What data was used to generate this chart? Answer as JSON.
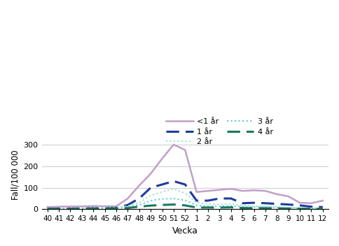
{
  "x_labels": [
    "40",
    "41",
    "42",
    "43",
    "44",
    "45",
    "46",
    "47",
    "48",
    "49",
    "50",
    "51",
    "52",
    "1",
    "2",
    "3",
    "4",
    "5",
    "6",
    "7",
    "8",
    "9",
    "10",
    "11",
    "12"
  ],
  "series": {
    "<1 år": [
      10,
      12,
      13,
      13,
      15,
      14,
      14,
      50,
      110,
      165,
      235,
      300,
      275,
      80,
      85,
      90,
      95,
      85,
      88,
      85,
      70,
      60,
      30,
      28,
      40
    ],
    "1 år": [
      2,
      3,
      3,
      4,
      5,
      5,
      6,
      20,
      50,
      100,
      115,
      130,
      115,
      40,
      40,
      50,
      50,
      28,
      30,
      28,
      25,
      22,
      18,
      12,
      10
    ],
    "2 år": [
      2,
      3,
      3,
      5,
      8,
      8,
      8,
      15,
      30,
      65,
      80,
      95,
      75,
      30,
      25,
      22,
      25,
      18,
      15,
      14,
      12,
      8,
      6,
      5,
      4
    ],
    "3 år": [
      1,
      2,
      2,
      3,
      5,
      5,
      5,
      8,
      20,
      40,
      48,
      50,
      42,
      18,
      14,
      14,
      16,
      12,
      10,
      10,
      8,
      7,
      5,
      4,
      3
    ],
    "4 år": [
      1,
      1,
      1,
      2,
      3,
      3,
      4,
      6,
      12,
      17,
      20,
      22,
      18,
      8,
      8,
      8,
      9,
      6,
      5,
      5,
      4,
      3,
      2,
      2,
      2
    ]
  },
  "colors": {
    "<1 år": "#c0a0c8",
    "1 år": "#1f3a9e",
    "2 år": "#a0e0d0",
    "3 år": "#60c8d8",
    "4 år": "#1a7a5a"
  },
  "linestyles": {
    "<1 år": "solid",
    "1 år": "dashed",
    "2 år": "dotted",
    "3 år": "dotted",
    "4 år": "dashed"
  },
  "linewidths": {
    "<1 år": 1.8,
    "1 år": 2.2,
    "2 år": 1.5,
    "3 år": 1.5,
    "4 år": 2.2
  },
  "dashes": {
    "<1 år": null,
    "1 år": [
      6,
      3
    ],
    "2 år": null,
    "3 år": null,
    "4 år": [
      6,
      3
    ]
  },
  "ylabel": "Fall/100 000",
  "xlabel": "Vecka",
  "ylim": [
    0,
    320
  ],
  "yticks": [
    0,
    100,
    200,
    300
  ],
  "bg_color": "#ffffff",
  "grid_color": "#d0d0d0",
  "legend_order": [
    "<1 år",
    "1 år",
    "2 år",
    "3 år",
    "4 år"
  ]
}
